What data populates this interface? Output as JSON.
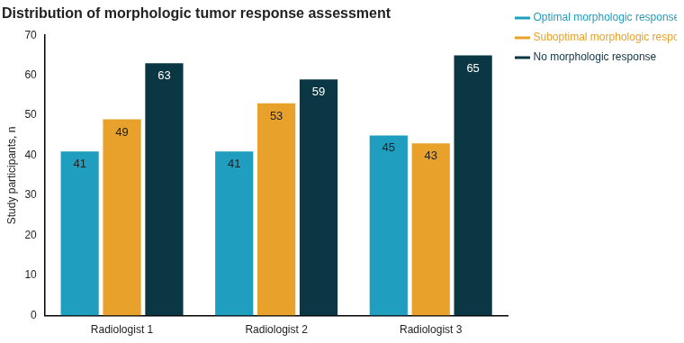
{
  "chart_data": {
    "type": "bar",
    "title": "Distribution of morphologic tumor response assessment",
    "y_label": "Study participants, n",
    "categories": [
      "Radiologist 1",
      "Radiologist 2",
      "Radiologist 3"
    ],
    "series": [
      {
        "name": "Optimal morphologic response",
        "color": "#1f9ec0",
        "values": [
          41,
          41,
          45
        ]
      },
      {
        "name": "Suboptimal morphologic response",
        "color": "#e8a12a",
        "values": [
          49,
          53,
          43
        ]
      },
      {
        "name": "No morphologic response",
        "color": "#0b3644",
        "values": [
          63,
          59,
          65
        ]
      }
    ],
    "ylim": [
      0,
      70
    ],
    "yticks": [
      0,
      10,
      20,
      30,
      40,
      50,
      60,
      70
    ],
    "grid": false,
    "legend": "top right",
    "data_labels": true
  }
}
